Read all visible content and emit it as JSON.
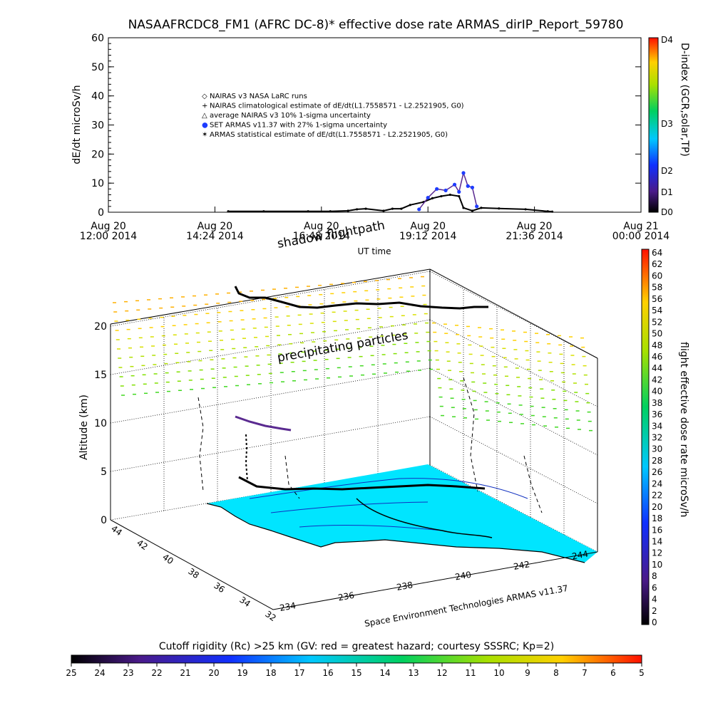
{
  "title": "NASAAFRCDC8_FM1 (AFRC DC-8)* effective dose rate ARMAS_dirIP_Report_59780",
  "chart_data": [
    {
      "type": "scatter",
      "ylabel": "dE/dt microSv/h",
      "xlabel": "UT time",
      "ylim": [
        0,
        60
      ],
      "yticks": [
        "0",
        "10",
        "20",
        "30",
        "40",
        "50",
        "60"
      ],
      "xticks": [
        {
          "l1": "Aug 20",
          "l2": "12:00 2014"
        },
        {
          "l1": "Aug 20",
          "l2": "14:24 2014"
        },
        {
          "l1": "Aug 20",
          "l2": "16:48 2014"
        },
        {
          "l1": "Aug 20",
          "l2": "19:12 2014"
        },
        {
          "l1": "Aug 20",
          "l2": "21:36 2014"
        },
        {
          "l1": "Aug 21",
          "l2": "00:00 2014"
        }
      ],
      "legend": [
        "NAIRAS v3 NASA LaRC runs",
        "NAIRAS climatological estimate of dE/dt(L1.7558571 - L2.2521905, G0)",
        "average NAIRAS v3 10% 1-sigma uncertainty",
        "SET ARMAS v11.37 with 27% 1-sigma uncertainty",
        "ARMAS statistical estimate of dE/dt(L1.7558571 - L2.2521905, G0)"
      ],
      "series": [
        {
          "name": "NAIRAS climatological estimate",
          "x": [
            14.7,
            15.5,
            16.5,
            17.0,
            17.4,
            17.6,
            17.8,
            18.2,
            18.4,
            18.6,
            18.8,
            19.1,
            19.3,
            19.5,
            19.7,
            19.9,
            20.0,
            20.2,
            20.4,
            20.8,
            21.4,
            21.9,
            22.0
          ],
          "y": [
            0.3,
            0.3,
            0.3,
            0.3,
            0.5,
            1.0,
            1.2,
            0.5,
            1.2,
            1.2,
            2.5,
            3.5,
            4.8,
            5.5,
            6.0,
            5.5,
            1.5,
            0.5,
            1.5,
            1.3,
            1.0,
            0.3,
            0.2
          ]
        },
        {
          "name": "SET ARMAS",
          "x": [
            19.0,
            19.2,
            19.4,
            19.6,
            19.8,
            19.9,
            20.0,
            20.1,
            20.2,
            20.3
          ],
          "y": [
            1.0,
            5.0,
            8.0,
            7.5,
            9.5,
            7.0,
            13.5,
            9.0,
            8.5,
            2.0
          ]
        }
      ],
      "d_index": {
        "label": "D-index (GCR,solar,TP)",
        "ticks": [
          "D0",
          "D1",
          "D2",
          "D3",
          "D4"
        ]
      }
    },
    {
      "type": "scatter",
      "annotations": [
        "shadow flightpath",
        "precipitating particles"
      ],
      "zlabel": "Altitude (km)",
      "zticks": [
        "0",
        "5",
        "10",
        "15",
        "20"
      ],
      "lat_ticks": [
        "44",
        "42",
        "40",
        "38",
        "36",
        "34",
        "32"
      ],
      "lon_ticks": [
        "234",
        "236",
        "238",
        "240",
        "242",
        "244"
      ],
      "credit": "Space Environment Technologies ARMAS v11.37",
      "dose_colorbar": {
        "label": "flight effective dose rate microSv/h",
        "ticks": [
          "0",
          "2",
          "4",
          "6",
          "8",
          "10",
          "12",
          "14",
          "16",
          "18",
          "20",
          "22",
          "24",
          "26",
          "28",
          "30",
          "32",
          "34",
          "36",
          "38",
          "40",
          "42",
          "44",
          "46",
          "48",
          "50",
          "52",
          "54",
          "56",
          "58",
          "60",
          "62",
          "64"
        ]
      }
    }
  ],
  "cutoff_colorbar": {
    "label": "Cutoff rigidity (Rc) >25 km (GV: red = greatest hazard; courtesy SSSRC; Kp=2)",
    "ticks": [
      "25",
      "24",
      "23",
      "22",
      "21",
      "20",
      "19",
      "18",
      "17",
      "16",
      "15",
      "14",
      "13",
      "12",
      "11",
      "10",
      "9",
      "8",
      "7",
      "6",
      "5"
    ]
  },
  "colors": {
    "sea": "#00e5ff",
    "armas": "#1e3cff",
    "track": "#000000",
    "track_high": "#5a2a90"
  }
}
